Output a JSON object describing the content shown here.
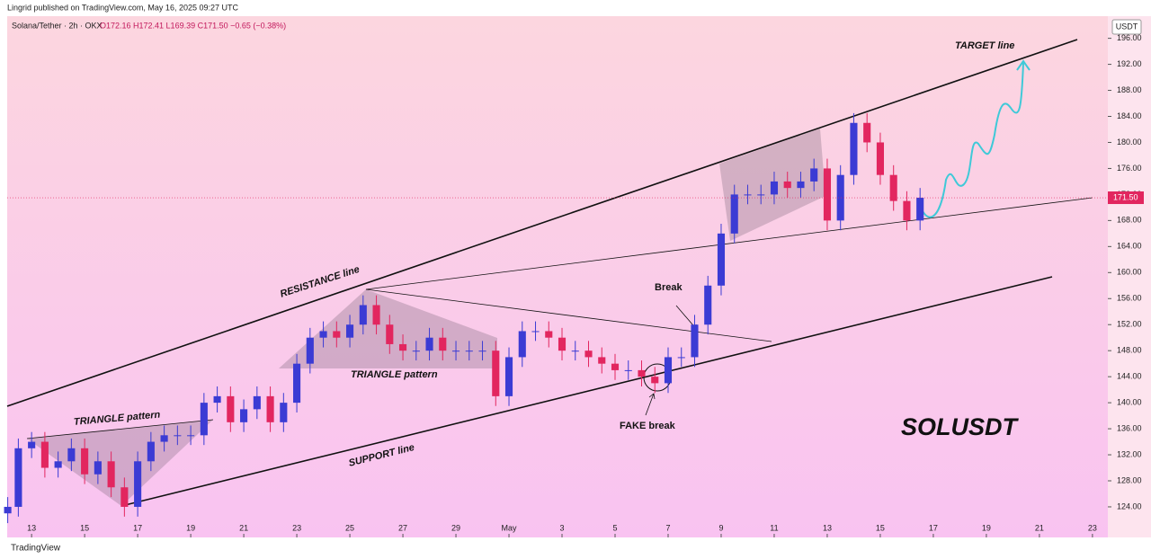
{
  "header": {
    "publisher": "Lingrid published on TradingView.com, May 16, 2025 09:27 UTC",
    "footer": "TradingView"
  },
  "chart_data": {
    "type": "candlestick",
    "symbol": "Solana/Tether · 2h · OKX",
    "ohlc_summary": "O172.16 H172.41 L169.39 C171.50 −0.65 (−0.38%)",
    "currency": "USDT",
    "title": "SOLUSDT",
    "annotations": [
      "TARGET line",
      "RESISTANCE line",
      "TRIANGLE pattern",
      "TRIANGLE pattern",
      "Break",
      "FAKE break",
      "SUPPORT line"
    ],
    "up_color": "#3b3bd4",
    "down_color": "#e2265f",
    "last_price": {
      "value": 171.5,
      "label": "171.50"
    },
    "x": [
      12.1,
      12.5,
      13,
      13.5,
      14,
      14.5,
      15,
      15.5,
      16,
      16.5,
      17,
      17.5,
      18,
      18.5,
      19,
      19.5,
      20,
      20.5,
      21,
      21.5,
      22,
      22.5,
      23,
      23.5,
      24,
      24.5,
      25,
      25.5,
      26,
      26.5,
      27,
      27.5,
      28,
      28.5,
      29,
      29.5,
      30,
      30.5,
      31,
      31.5,
      32,
      32.5,
      33,
      33.5,
      34,
      34.5,
      35,
      35.5,
      36,
      36.5,
      37,
      37.5,
      38,
      38.5,
      39,
      39.5,
      40,
      40.5,
      41,
      41.5,
      42,
      42.5,
      43,
      43.5,
      44,
      44.5,
      45,
      45.5,
      46,
      46.5
    ],
    "open": [
      123,
      124,
      133,
      134,
      130,
      131,
      133,
      129,
      131,
      127,
      124,
      131,
      134,
      135,
      135,
      135,
      140,
      141,
      137,
      139,
      141,
      137,
      140,
      146,
      150,
      151,
      150,
      152,
      155,
      152,
      149,
      148,
      148,
      150,
      148,
      148,
      148,
      148,
      141,
      147,
      151,
      151,
      150,
      148,
      148,
      147,
      146,
      145,
      145,
      144,
      143,
      147,
      147,
      152,
      158,
      166,
      172,
      172,
      172,
      174,
      173,
      174,
      176,
      168,
      175,
      183,
      180,
      175,
      171,
      168
    ],
    "high": [
      125.5,
      134.5,
      135.5,
      135.5,
      132.5,
      134.5,
      134.5,
      132.5,
      132.5,
      128.5,
      132.5,
      135.5,
      136.5,
      136.5,
      136.5,
      141.5,
      142.5,
      142.5,
      140.5,
      142.5,
      142.5,
      141.5,
      147.5,
      151.5,
      152.5,
      152.5,
      153.5,
      156.5,
      156.5,
      153.5,
      150.5,
      149.5,
      151.5,
      151.5,
      149.5,
      149.5,
      149.5,
      149.5,
      148.5,
      152.5,
      152.5,
      152.5,
      151.5,
      149.5,
      149.5,
      148.5,
      147.5,
      146.5,
      146.5,
      145.5,
      148.5,
      148.5,
      153.5,
      159.5,
      167.5,
      173.5,
      173.5,
      173.5,
      175.5,
      175.5,
      175.5,
      177.5,
      177.5,
      176.5,
      184.5,
      184.5,
      181.5,
      176.5,
      172.5,
      173
    ],
    "low": [
      121.5,
      122.5,
      131.5,
      128.5,
      128.5,
      129.5,
      127.5,
      127.5,
      125.5,
      122.5,
      122.5,
      129.5,
      132.5,
      133.5,
      133.5,
      133.5,
      138.5,
      135.5,
      135.5,
      137.5,
      135.5,
      135.5,
      138.5,
      144.5,
      148.5,
      148.5,
      148.5,
      150.5,
      150.5,
      147.5,
      146.5,
      146.5,
      146.5,
      146.5,
      146.5,
      146.5,
      146.5,
      139.5,
      139.5,
      145.5,
      149.5,
      148.5,
      146.5,
      146.5,
      145.5,
      144.5,
      143.5,
      143.5,
      142.5,
      141.5,
      141.5,
      145.5,
      145.5,
      150.5,
      156.5,
      164.5,
      170.5,
      170.5,
      170.5,
      171.5,
      171.5,
      172.5,
      166.5,
      166.5,
      173.5,
      178.5,
      173.5,
      169.5,
      166.5,
      166.5
    ],
    "close": [
      124,
      133,
      134,
      130,
      131,
      133,
      129,
      131,
      127,
      124,
      131,
      134,
      135,
      135,
      135,
      140,
      141,
      137,
      139,
      141,
      137,
      140,
      146,
      150,
      151,
      150,
      152,
      155,
      152,
      149,
      148,
      148,
      150,
      148,
      148,
      148,
      148,
      141,
      147,
      151,
      151,
      150,
      148,
      148,
      147,
      146,
      145,
      145,
      144,
      143,
      147,
      147,
      152,
      158,
      166,
      172,
      172,
      172,
      174,
      173,
      174,
      176,
      168,
      175,
      183,
      180,
      175,
      171,
      168,
      171.5
    ],
    "xlim": [
      12.08,
      53.58
    ],
    "xticks": [
      13,
      15,
      17,
      19,
      21,
      23,
      25,
      27,
      29,
      {
        "value": 31,
        "label": "May"
      },
      {
        "value": 33,
        "label": "3"
      },
      {
        "value": 35,
        "label": "5"
      },
      {
        "value": 37,
        "label": "7"
      },
      {
        "value": 39,
        "label": "9"
      },
      {
        "value": 41,
        "label": "11"
      },
      {
        "value": 43,
        "label": "13"
      },
      {
        "value": 45,
        "label": "15"
      },
      {
        "value": 47,
        "label": "17"
      },
      {
        "value": 49,
        "label": "19"
      },
      {
        "value": 51,
        "label": "21"
      },
      {
        "value": 53,
        "label": "23"
      }
    ],
    "ylim": [
      119.3,
      199.4
    ],
    "yticks": [
      {
        "value": 124,
        "label": "124.00"
      },
      {
        "value": 128,
        "label": "128.00"
      },
      {
        "value": 132,
        "label": "132.00"
      },
      {
        "value": 136,
        "label": "136.00"
      },
      {
        "value": 140,
        "label": "140.00"
      },
      {
        "value": 144,
        "label": "144.00"
      },
      {
        "value": 148,
        "label": "148.00"
      },
      {
        "value": 152,
        "label": "152.00"
      },
      {
        "value": 156,
        "label": "156.00"
      },
      {
        "value": 160,
        "label": "160.00"
      },
      {
        "value": 164,
        "label": "164.00"
      },
      {
        "value": 168,
        "label": "168.00"
      },
      {
        "value": 172,
        "label": "172.00"
      },
      {
        "value": 176,
        "label": "176.00"
      },
      {
        "value": 180,
        "label": "180.00"
      },
      {
        "value": 184,
        "label": "184.00"
      },
      {
        "value": 188,
        "label": "188.00"
      },
      {
        "value": 192,
        "label": "192.00"
      },
      {
        "value": 196,
        "label": "196.00"
      }
    ]
  }
}
